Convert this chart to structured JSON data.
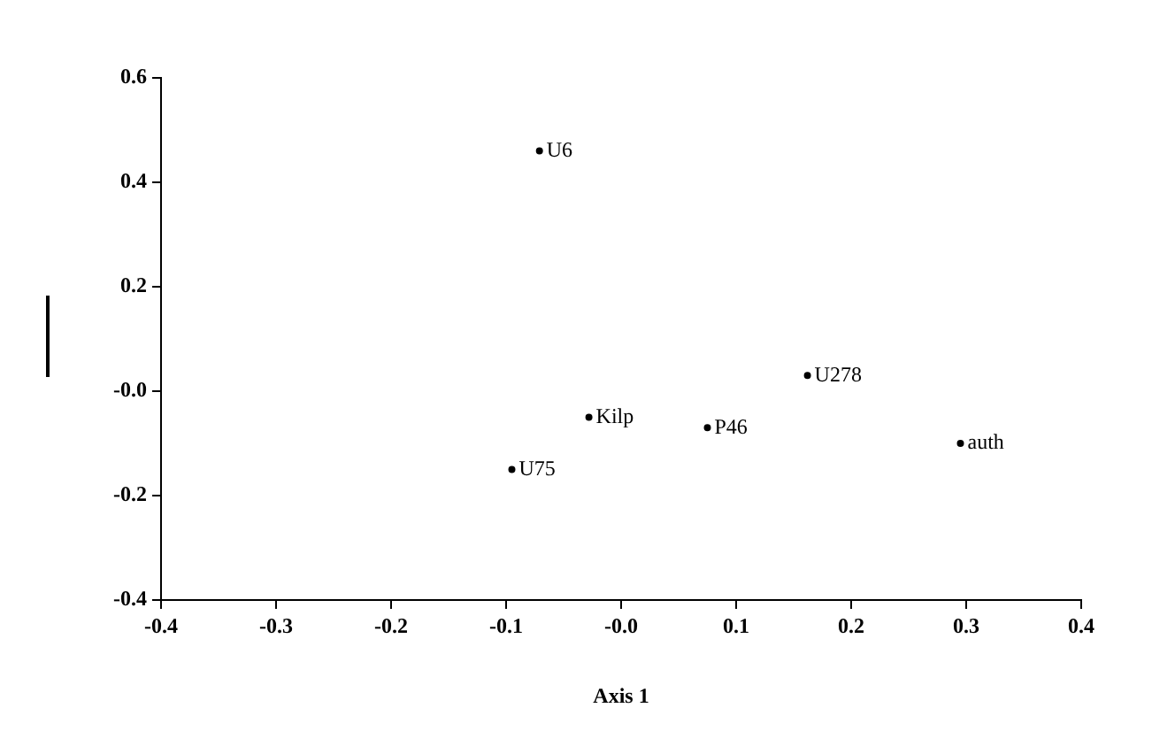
{
  "chart_data": {
    "type": "scatter",
    "xlabel": "Axis 1",
    "marker": "circle",
    "grid": false,
    "legend": false,
    "xlim": [
      -0.4,
      0.4
    ],
    "ylim": [
      -0.4,
      0.6
    ],
    "xticks": [
      -0.4,
      -0.3,
      -0.2,
      -0.1,
      {
        "value": 0,
        "label": "-0.0"
      },
      0.1,
      0.2,
      0.3,
      0.4
    ],
    "yticks": [
      -0.4,
      -0.2,
      {
        "value": 0,
        "label": "-0.0"
      },
      0.2,
      0.4,
      0.6
    ],
    "series": [
      {
        "color": "#000000",
        "x": [
          -0.071,
          0.162,
          -0.028,
          0.075,
          -0.095,
          0.295
        ],
        "values": [
          0.46,
          0.03,
          -0.05,
          -0.07,
          -0.15,
          -0.1
        ],
        "value_labels": [
          "U6",
          "U278",
          "Kilp",
          "P46",
          "U75",
          "auth"
        ]
      }
    ]
  }
}
